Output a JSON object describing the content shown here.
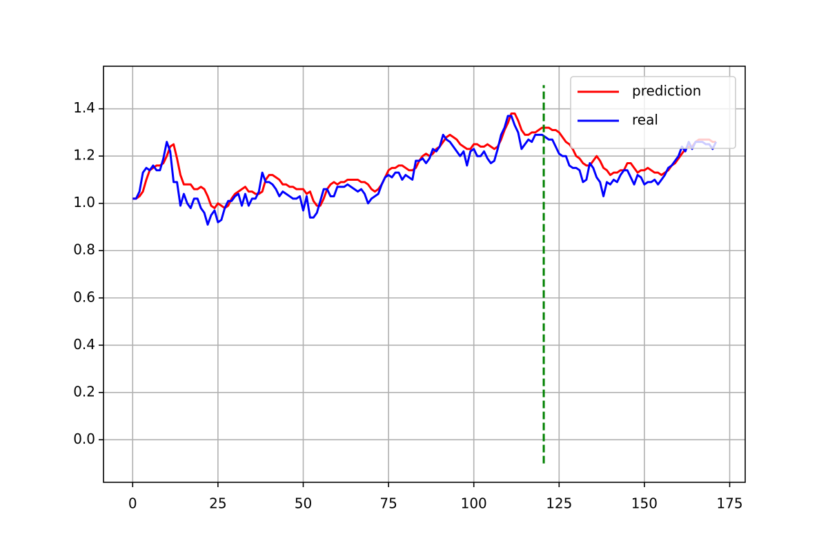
{
  "chart_data": {
    "type": "line",
    "x": [
      0,
      1,
      2,
      3,
      4,
      5,
      6,
      7,
      8,
      9,
      10,
      11,
      12,
      13,
      14,
      15,
      16,
      17,
      18,
      19,
      20,
      21,
      22,
      23,
      24,
      25,
      26,
      27,
      28,
      29,
      30,
      31,
      32,
      33,
      34,
      35,
      36,
      37,
      38,
      39,
      40,
      41,
      42,
      43,
      44,
      45,
      46,
      47,
      48,
      49,
      50,
      51,
      52,
      53,
      54,
      55,
      56,
      57,
      58,
      59,
      60,
      61,
      62,
      63,
      64,
      65,
      66,
      67,
      68,
      69,
      70,
      71,
      72,
      73,
      74,
      75,
      76,
      77,
      78,
      79,
      80,
      81,
      82,
      83,
      84,
      85,
      86,
      87,
      88,
      89,
      90,
      91,
      92,
      93,
      94,
      95,
      96,
      97,
      98,
      99,
      100,
      101,
      102,
      103,
      104,
      105,
      106,
      107,
      108,
      109,
      110,
      111,
      112,
      113,
      114,
      115,
      116,
      117,
      118,
      119,
      120,
      121,
      122,
      123,
      124,
      125,
      126,
      127,
      128,
      129,
      130,
      131,
      132,
      133,
      134,
      135,
      136,
      137,
      138,
      139,
      140,
      141,
      142,
      143,
      144,
      145,
      146,
      147,
      148,
      149,
      150,
      151,
      152,
      153,
      154,
      155,
      156,
      157,
      158,
      159,
      160,
      161,
      162,
      163,
      164,
      165,
      166,
      167,
      168,
      169,
      170,
      171
    ],
    "series": [
      {
        "name": "prediction",
        "color": "#ff0000",
        "values": [
          1.02,
          1.02,
          1.03,
          1.05,
          1.1,
          1.14,
          1.15,
          1.16,
          1.16,
          1.17,
          1.2,
          1.24,
          1.25,
          1.19,
          1.12,
          1.08,
          1.08,
          1.08,
          1.06,
          1.06,
          1.07,
          1.06,
          1.03,
          0.99,
          0.98,
          1.0,
          0.99,
          0.98,
          0.99,
          1.02,
          1.04,
          1.05,
          1.06,
          1.07,
          1.05,
          1.05,
          1.04,
          1.04,
          1.05,
          1.1,
          1.12,
          1.12,
          1.11,
          1.1,
          1.08,
          1.08,
          1.07,
          1.07,
          1.06,
          1.06,
          1.06,
          1.04,
          1.05,
          1.01,
          0.99,
          0.99,
          1.02,
          1.06,
          1.08,
          1.09,
          1.08,
          1.09,
          1.09,
          1.1,
          1.1,
          1.1,
          1.1,
          1.09,
          1.09,
          1.08,
          1.06,
          1.05,
          1.06,
          1.08,
          1.11,
          1.14,
          1.15,
          1.15,
          1.16,
          1.16,
          1.15,
          1.14,
          1.14,
          1.15,
          1.18,
          1.2,
          1.21,
          1.2,
          1.21,
          1.23,
          1.24,
          1.26,
          1.28,
          1.29,
          1.28,
          1.27,
          1.25,
          1.24,
          1.23,
          1.23,
          1.25,
          1.25,
          1.24,
          1.24,
          1.25,
          1.24,
          1.23,
          1.24,
          1.27,
          1.31,
          1.34,
          1.38,
          1.38,
          1.35,
          1.31,
          1.29,
          1.29,
          1.3,
          1.3,
          1.31,
          1.32,
          1.32,
          1.32,
          1.31,
          1.31,
          1.3,
          1.28,
          1.26,
          1.25,
          1.23,
          1.2,
          1.19,
          1.17,
          1.16,
          1.16,
          1.18,
          1.2,
          1.18,
          1.15,
          1.14,
          1.12,
          1.13,
          1.13,
          1.14,
          1.14,
          1.17,
          1.17,
          1.15,
          1.13,
          1.14,
          1.14,
          1.15,
          1.14,
          1.13,
          1.13,
          1.12,
          1.13,
          1.14,
          1.16,
          1.17,
          1.19,
          1.21,
          1.23,
          1.24,
          1.24,
          1.26,
          1.27,
          1.27,
          1.27,
          1.27,
          1.26,
          1.26
        ]
      },
      {
        "name": "real",
        "color": "#0000ff",
        "values": [
          1.02,
          1.02,
          1.05,
          1.13,
          1.15,
          1.14,
          1.16,
          1.14,
          1.14,
          1.19,
          1.26,
          1.22,
          1.09,
          1.09,
          0.99,
          1.04,
          1.0,
          0.98,
          1.02,
          1.02,
          0.98,
          0.96,
          0.91,
          0.95,
          0.97,
          0.92,
          0.93,
          0.98,
          1.01,
          1.01,
          1.03,
          1.04,
          0.99,
          1.04,
          0.99,
          1.02,
          1.02,
          1.05,
          1.13,
          1.09,
          1.09,
          1.08,
          1.06,
          1.03,
          1.05,
          1.04,
          1.03,
          1.02,
          1.02,
          1.03,
          0.97,
          1.03,
          0.94,
          0.94,
          0.96,
          1.01,
          1.06,
          1.06,
          1.03,
          1.03,
          1.07,
          1.07,
          1.07,
          1.08,
          1.07,
          1.06,
          1.05,
          1.06,
          1.04,
          1.0,
          1.02,
          1.03,
          1.04,
          1.08,
          1.11,
          1.12,
          1.11,
          1.13,
          1.13,
          1.1,
          1.12,
          1.11,
          1.1,
          1.18,
          1.18,
          1.19,
          1.17,
          1.19,
          1.23,
          1.22,
          1.24,
          1.29,
          1.27,
          1.26,
          1.24,
          1.22,
          1.2,
          1.22,
          1.16,
          1.22,
          1.23,
          1.2,
          1.2,
          1.22,
          1.19,
          1.17,
          1.18,
          1.23,
          1.29,
          1.32,
          1.37,
          1.37,
          1.33,
          1.3,
          1.23,
          1.25,
          1.27,
          1.26,
          1.29,
          1.29,
          1.29,
          1.28,
          1.27,
          1.27,
          1.24,
          1.21,
          1.2,
          1.2,
          1.16,
          1.15,
          1.15,
          1.14,
          1.09,
          1.1,
          1.17,
          1.15,
          1.11,
          1.09,
          1.03,
          1.09,
          1.08,
          1.1,
          1.09,
          1.12,
          1.14,
          1.14,
          1.11,
          1.08,
          1.12,
          1.11,
          1.08,
          1.09,
          1.09,
          1.1,
          1.08,
          1.1,
          1.12,
          1.15,
          1.16,
          1.18,
          1.2,
          1.24,
          1.22,
          1.26,
          1.23,
          1.26,
          1.26,
          1.26,
          1.25,
          1.25,
          1.23,
          1.26
        ]
      }
    ],
    "vline": {
      "x": 120.5,
      "ymin": -0.1,
      "ymax": 1.5,
      "color": "#008000"
    },
    "xlim": [
      -8.55,
      179.55
    ],
    "ylim": [
      -0.18,
      1.58
    ],
    "xticks": [
      0,
      25,
      50,
      75,
      100,
      125,
      150,
      175
    ],
    "yticks": [
      {
        "value": 0,
        "label": "0.0"
      },
      0.2,
      0.4,
      0.6,
      0.8,
      {
        "value": 1,
        "label": "1.0"
      },
      1.2,
      1.4
    ],
    "grid": true,
    "legend": "upper right"
  }
}
